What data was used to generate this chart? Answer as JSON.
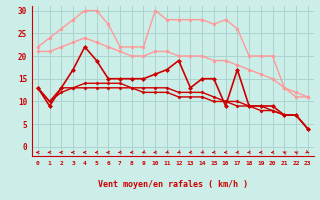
{
  "bg_color": "#cceee8",
  "grid_color": "#aad4ce",
  "xlabel": "Vent moyen/en rafales ( km/h )",
  "x_ticks": [
    0,
    1,
    2,
    3,
    4,
    5,
    6,
    7,
    8,
    9,
    10,
    11,
    12,
    13,
    14,
    15,
    16,
    17,
    18,
    19,
    20,
    21,
    22,
    23
  ],
  "y_ticks": [
    0,
    5,
    10,
    15,
    20,
    25,
    30
  ],
  "ylim": [
    -2,
    31
  ],
  "xlim": [
    -0.5,
    23.5
  ],
  "series": [
    {
      "color": "#ff9999",
      "lw": 1.0,
      "marker": "o",
      "ms": 2.0,
      "data": [
        22,
        24,
        26,
        28,
        30,
        30,
        27,
        22,
        22,
        22,
        30,
        28,
        28,
        28,
        28,
        27,
        28,
        26,
        20,
        20,
        20,
        13,
        12,
        11
      ]
    },
    {
      "color": "#ff9999",
      "lw": 1.0,
      "marker": "o",
      "ms": 2.0,
      "data": [
        21,
        21,
        22,
        23,
        24,
        23,
        22,
        21,
        20,
        20,
        21,
        21,
        20,
        20,
        20,
        19,
        19,
        18,
        17,
        16,
        15,
        13,
        11,
        11
      ]
    },
    {
      "color": "#cc0000",
      "lw": 1.2,
      "marker": "D",
      "ms": 2.0,
      "data": [
        13,
        9,
        13,
        17,
        22,
        19,
        15,
        15,
        15,
        15,
        16,
        17,
        19,
        13,
        15,
        15,
        9,
        17,
        9,
        9,
        9,
        7,
        7,
        4
      ]
    },
    {
      "color": "#cc0000",
      "lw": 1.0,
      "marker": "D",
      "ms": 1.5,
      "data": [
        13,
        10,
        13,
        13,
        14,
        14,
        14,
        14,
        13,
        13,
        13,
        13,
        12,
        12,
        12,
        11,
        10,
        10,
        9,
        9,
        8,
        7,
        7,
        4
      ]
    },
    {
      "color": "#cc0000",
      "lw": 1.0,
      "marker": "D",
      "ms": 1.5,
      "data": [
        13,
        10,
        12,
        13,
        13,
        13,
        13,
        13,
        13,
        12,
        12,
        12,
        11,
        11,
        11,
        10,
        10,
        9,
        9,
        8,
        8,
        7,
        7,
        4
      ]
    }
  ],
  "arrow_angles": [
    180,
    180,
    180,
    180,
    180,
    200,
    180,
    200,
    200,
    220,
    200,
    220,
    220,
    200,
    220,
    200,
    200,
    200,
    200,
    200,
    200,
    135,
    135,
    315
  ]
}
